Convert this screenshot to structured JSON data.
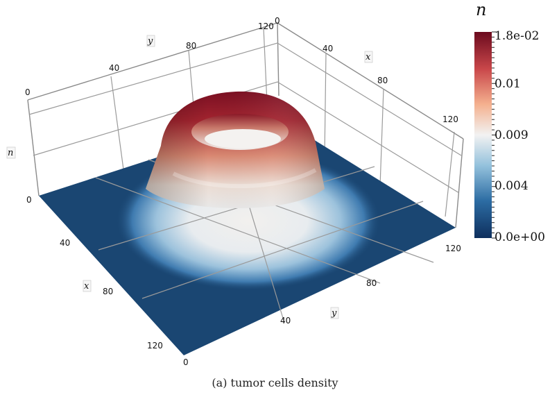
{
  "chart_data": {
    "type": "surface",
    "title": "",
    "variable": "n",
    "x_axis": {
      "label": "x",
      "range": [
        0,
        120
      ],
      "ticks": [
        40,
        80,
        120
      ],
      "back_ticks": [
        0,
        40,
        80,
        120
      ]
    },
    "y_axis": {
      "label": "y",
      "range": [
        0,
        120
      ],
      "ticks": [
        40,
        80,
        120
      ],
      "back_ticks": [
        0,
        40,
        80,
        120
      ]
    },
    "z_axis": {
      "label": "n",
      "range": [
        0,
        0.018
      ],
      "ticks": [
        0
      ]
    },
    "grid": true,
    "surface": {
      "shape": "ring",
      "center": [
        60,
        60
      ],
      "ring_radius": 35,
      "peak_value": 0.018,
      "inner_value": 0.009,
      "background_value": 0
    },
    "colorbar": {
      "title": "n",
      "placement": "right",
      "min": 0,
      "max": 0.018,
      "labels": [
        "1.8e-02",
        "0.01",
        "0.009",
        "0.004",
        "0.0e+00"
      ],
      "colors": [
        "#0e2f5d",
        "#2c6ca3",
        "#93c1dc",
        "#f2f2f2",
        "#f4b08e",
        "#c9474a",
        "#6b0a1e"
      ]
    }
  },
  "labels": {
    "origin_left": "0",
    "origin_top": "0",
    "front_origin": "0",
    "x_front_label": "x",
    "y_front_label": "y",
    "x_back_label": "x",
    "y_back_label": "y",
    "z_label": "n"
  },
  "caption": "(a) tumor cells density"
}
